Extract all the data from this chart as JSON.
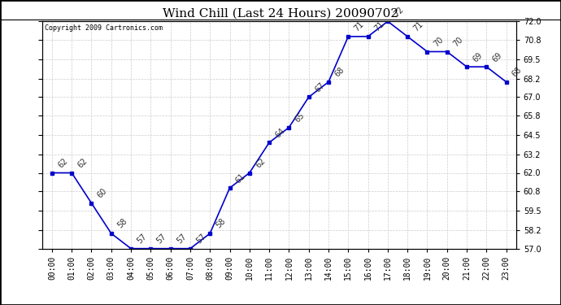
{
  "title": "Wind Chill (Last 24 Hours) 20090702",
  "copyright": "Copyright 2009 Cartronics.com",
  "hours": [
    "00:00",
    "01:00",
    "02:00",
    "03:00",
    "04:00",
    "05:00",
    "06:00",
    "07:00",
    "08:00",
    "09:00",
    "10:00",
    "11:00",
    "12:00",
    "13:00",
    "14:00",
    "15:00",
    "16:00",
    "17:00",
    "18:00",
    "19:00",
    "20:00",
    "21:00",
    "22:00",
    "23:00"
  ],
  "values": [
    62,
    62,
    60,
    58,
    57,
    57,
    57,
    57,
    58,
    61,
    62,
    64,
    65,
    67,
    68,
    71,
    71,
    72,
    71,
    70,
    70,
    69,
    69,
    68
  ],
  "ylim": [
    57.0,
    72.0
  ],
  "yticks": [
    57.0,
    58.2,
    59.5,
    60.8,
    62.0,
    63.2,
    64.5,
    65.8,
    67.0,
    68.2,
    69.5,
    70.8,
    72.0
  ],
  "line_color": "#0000cc",
  "marker_color": "#0000cc",
  "grid_color": "#cccccc",
  "bg_color": "#ffffff",
  "title_fontsize": 11,
  "label_fontsize": 7,
  "annotation_fontsize": 7,
  "annotation_color": "#333333",
  "border_color": "#000000"
}
